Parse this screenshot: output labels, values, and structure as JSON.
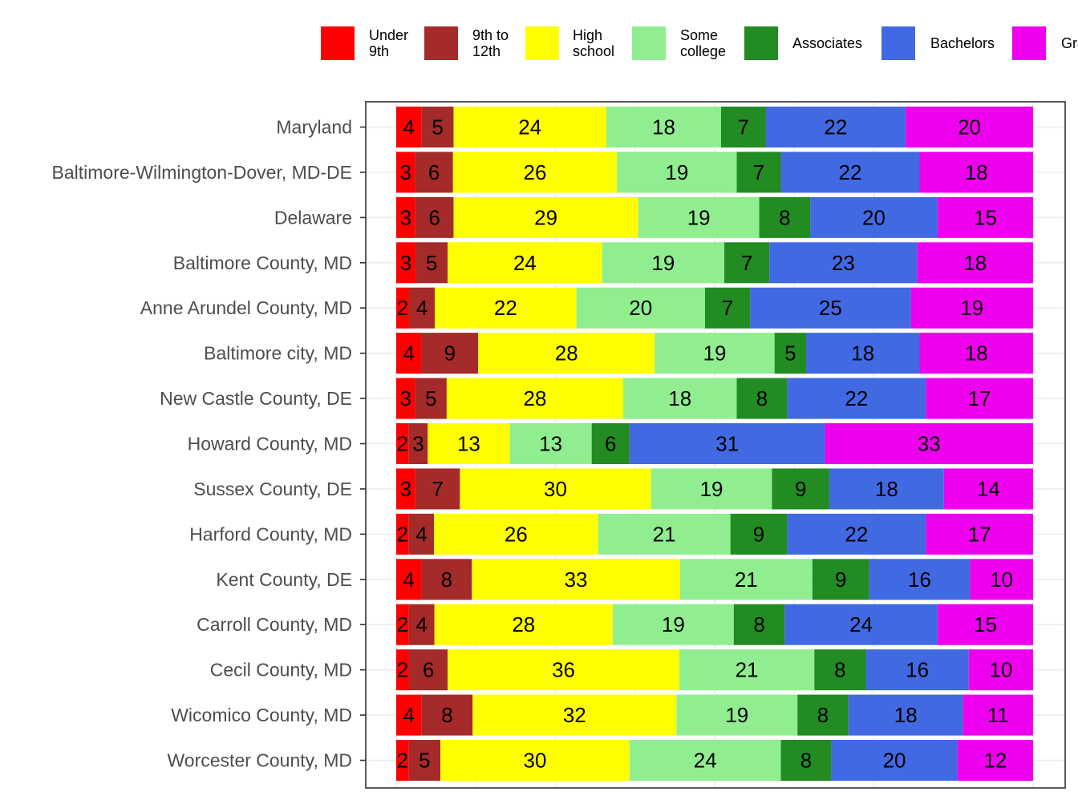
{
  "chart_data": {
    "type": "bar",
    "orientation": "horizontal",
    "stacked": true,
    "title": "",
    "xlabel": "",
    "ylabel": "",
    "xlim": [
      0,
      100
    ],
    "grid": true,
    "legend_position": "top",
    "categories": [
      "Maryland",
      "Baltimore-Wilmington-Dover, MD-DE",
      "Delaware",
      "Baltimore County, MD",
      "Anne Arundel County, MD",
      "Baltimore city, MD",
      "New Castle County, DE",
      "Howard County, MD",
      "Sussex County, DE",
      "Harford County, MD",
      "Kent County, DE",
      "Carroll County, MD",
      "Cecil County, MD",
      "Wicomico County, MD",
      "Worcester County, MD"
    ],
    "series": [
      {
        "name": "Under\n9th",
        "color": "#FF0000",
        "values": [
          4,
          3,
          3,
          3,
          2,
          4,
          3,
          2,
          3,
          2,
          4,
          2,
          2,
          4,
          2
        ]
      },
      {
        "name": "9th to\n12th",
        "color": "#A52A2A",
        "values": [
          5,
          6,
          6,
          5,
          4,
          9,
          5,
          3,
          7,
          4,
          8,
          4,
          6,
          8,
          5
        ]
      },
      {
        "name": "High\nschool",
        "color": "#FFFF00",
        "values": [
          24,
          26,
          29,
          24,
          22,
          28,
          28,
          13,
          30,
          26,
          33,
          28,
          36,
          32,
          30
        ]
      },
      {
        "name": "Some\ncollege",
        "color": "#90EE90",
        "values": [
          18,
          19,
          19,
          19,
          20,
          19,
          18,
          13,
          19,
          21,
          21,
          19,
          21,
          19,
          24
        ]
      },
      {
        "name": "Associates",
        "color": "#228B22",
        "values": [
          7,
          7,
          8,
          7,
          7,
          5,
          8,
          6,
          9,
          9,
          9,
          8,
          8,
          8,
          8
        ]
      },
      {
        "name": "Bachelors",
        "color": "#4169E1",
        "values": [
          22,
          22,
          20,
          23,
          25,
          18,
          22,
          31,
          18,
          22,
          16,
          24,
          16,
          18,
          20
        ]
      },
      {
        "name": "Graduate",
        "color": "#EE00EE",
        "values": [
          20,
          18,
          15,
          18,
          19,
          18,
          17,
          33,
          14,
          17,
          10,
          15,
          10,
          11,
          12
        ]
      }
    ]
  }
}
